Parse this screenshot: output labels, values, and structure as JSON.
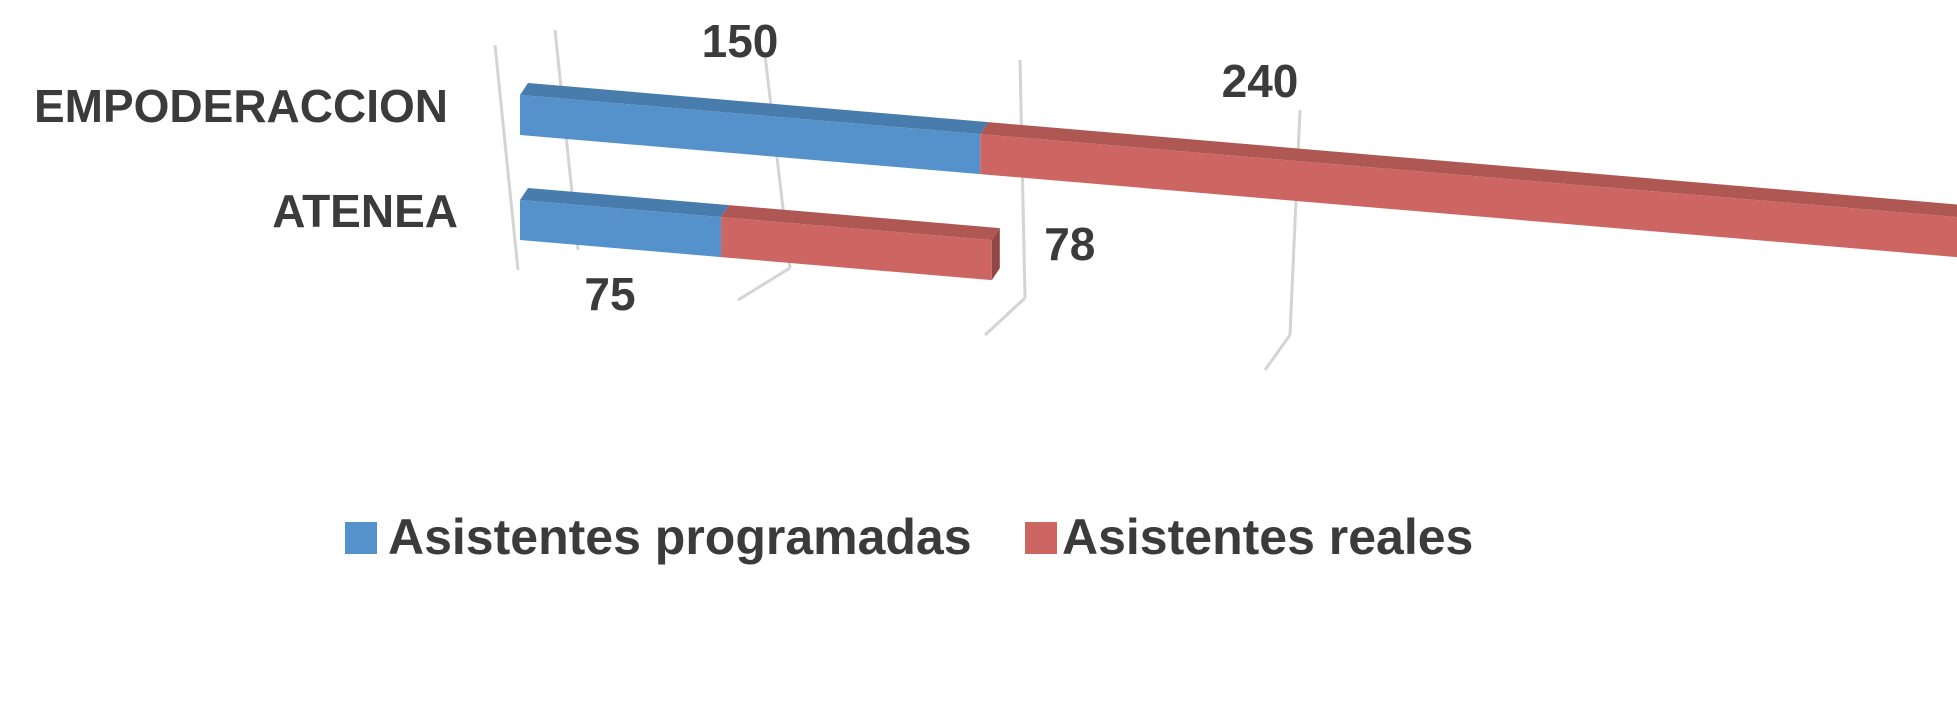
{
  "chart_data": {
    "type": "bar3d_stacked_horizontal",
    "categories": [
      "EMPODERACCION",
      "ATENEA"
    ],
    "series": [
      {
        "name": "Asistentes programadas",
        "color": "#5592cc",
        "values": [
          150,
          75
        ]
      },
      {
        "name": "Asistentes reales",
        "color": "#cd6662",
        "values": [
          240,
          78
        ]
      }
    ],
    "xlim": [
      0,
      400
    ]
  }
}
